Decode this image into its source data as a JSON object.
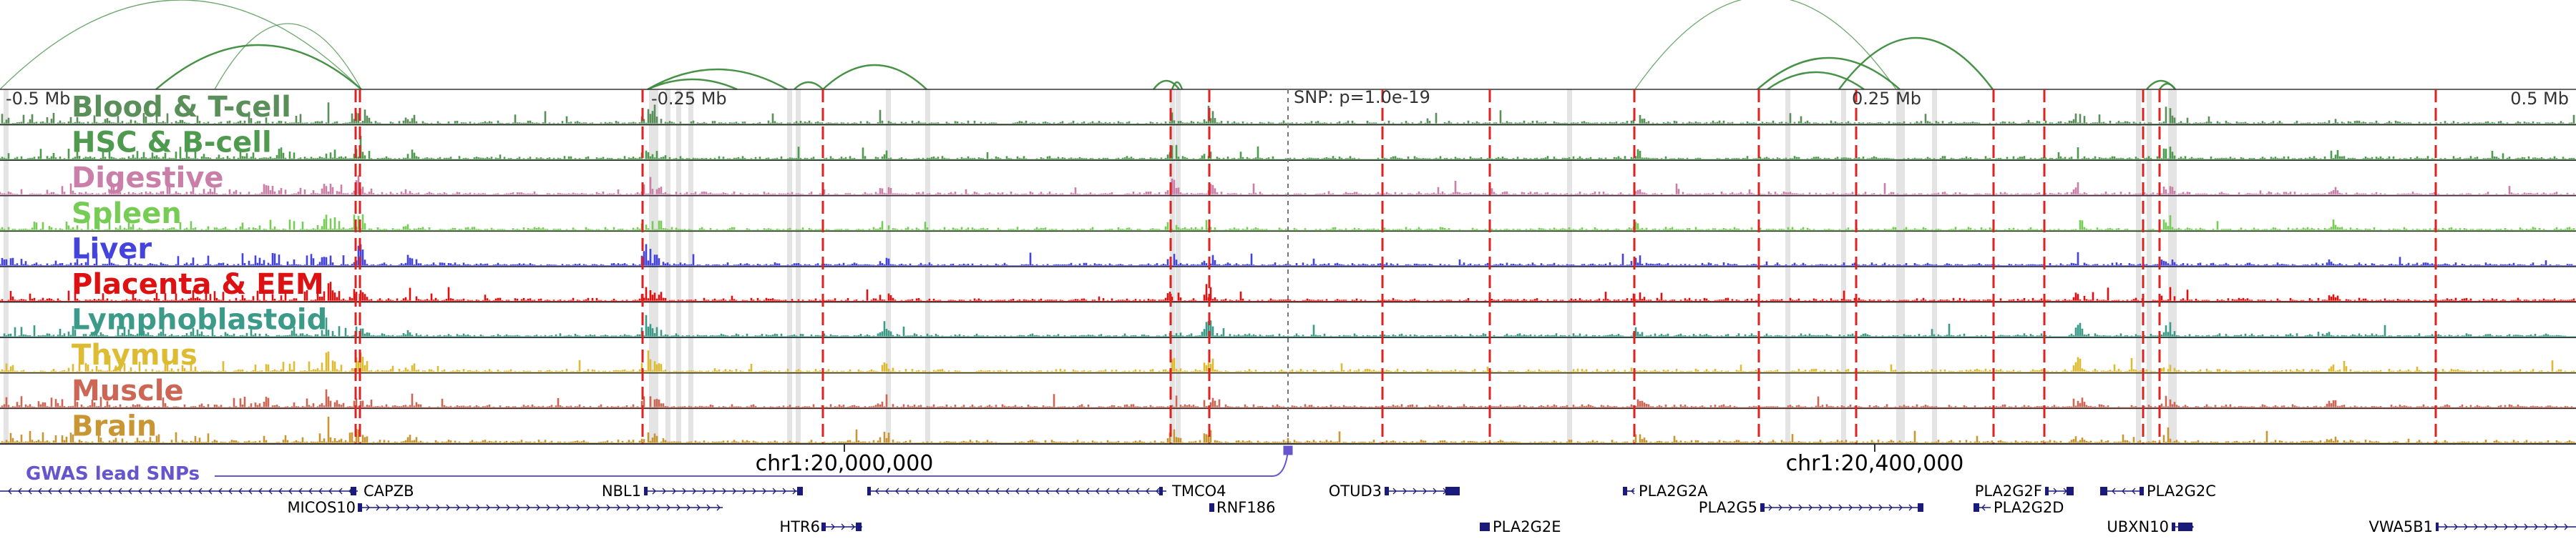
{
  "coordinates": {
    "left_label": "-0.5 Mb",
    "quarter_left_label": "-0.25 Mb",
    "quarter_right_label": "0.25 Mb",
    "right_label": "0.5 Mb",
    "snp_label": "SNP: p=1.0e-19"
  },
  "chromosome_ticks": [
    "chr1:20,000,000",
    "chr1:20,400,000"
  ],
  "gwas": {
    "label": "GWAS lead SNPs"
  },
  "tracks": [
    {
      "label": "Blood & T-cell",
      "color": "#5a8f5a"
    },
    {
      "label": "HSC & B-cell",
      "color": "#4e9a4e"
    },
    {
      "label": "Digestive",
      "color": "#c97fa8"
    },
    {
      "label": "Spleen",
      "color": "#77cc55"
    },
    {
      "label": "Liver",
      "color": "#4444dd"
    },
    {
      "label": "Placenta & EEM",
      "color": "#dd1111"
    },
    {
      "label": "Lymphoblastoid",
      "color": "#3c9a88"
    },
    {
      "label": "Thymus",
      "color": "#ddbb33"
    },
    {
      "label": "Muscle",
      "color": "#cc6655"
    },
    {
      "label": "Brain",
      "color": "#c89632"
    }
  ],
  "genes": [
    {
      "name": "CAPZB"
    },
    {
      "name": "MICOS10"
    },
    {
      "name": "NBL1"
    },
    {
      "name": "HTR6"
    },
    {
      "name": "TMCO4"
    },
    {
      "name": "RNF186"
    },
    {
      "name": "OTUD3"
    },
    {
      "name": "PLA2G2E"
    },
    {
      "name": "PLA2G2A"
    },
    {
      "name": "PLA2G5"
    },
    {
      "name": "PLA2G2F"
    },
    {
      "name": "PLA2G2D"
    },
    {
      "name": "PLA2G2C"
    },
    {
      "name": "UBXN10"
    },
    {
      "name": "VWA5B1"
    }
  ],
  "colors": {
    "arc": "#3c8c3c",
    "snp_line": "#dd2222",
    "highlight_band": "#e4e4e4",
    "gene": "#1a1a7a",
    "gwas": "#6655cc",
    "track_border": "#333333"
  }
}
